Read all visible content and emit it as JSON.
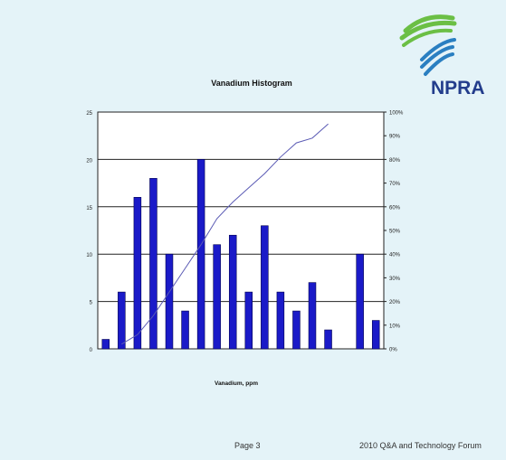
{
  "logo": {
    "text": "NPRA",
    "colors": {
      "green": "#6bbf45",
      "blue": "#2a7fc1",
      "text": "#233d8c"
    }
  },
  "footer": {
    "page": "Page 3",
    "event": "2010 Q&A and Technology Forum"
  },
  "chart_data": {
    "type": "bar",
    "title": "Vanadium Histogram",
    "xlabel": "Vanadium,  ppm",
    "ylabel": "",
    "ylim": [
      0,
      25
    ],
    "y_ticks": [
      "0",
      "5",
      "10",
      "15",
      "20",
      "25"
    ],
    "y2lim": [
      0,
      100
    ],
    "y2_ticks": [
      "0%",
      "10%",
      "20%",
      "30%",
      "40%",
      "50%",
      "60%",
      "70%",
      "80%",
      "90%",
      "100%"
    ],
    "grid": "horizontal",
    "bar_color": "#1a1ac8",
    "line_color": "#5a5ab4",
    "plot_bg": "#ffffff",
    "values": [
      1,
      6,
      16,
      18,
      10,
      4,
      20,
      11,
      12,
      6,
      13,
      6,
      4,
      7,
      2,
      0,
      10,
      3
    ],
    "cumulative_percent": [
      null,
      2,
      6,
      14,
      24,
      34,
      44,
      55,
      62,
      68,
      74,
      81,
      87,
      89,
      95,
      null,
      null,
      null
    ]
  }
}
